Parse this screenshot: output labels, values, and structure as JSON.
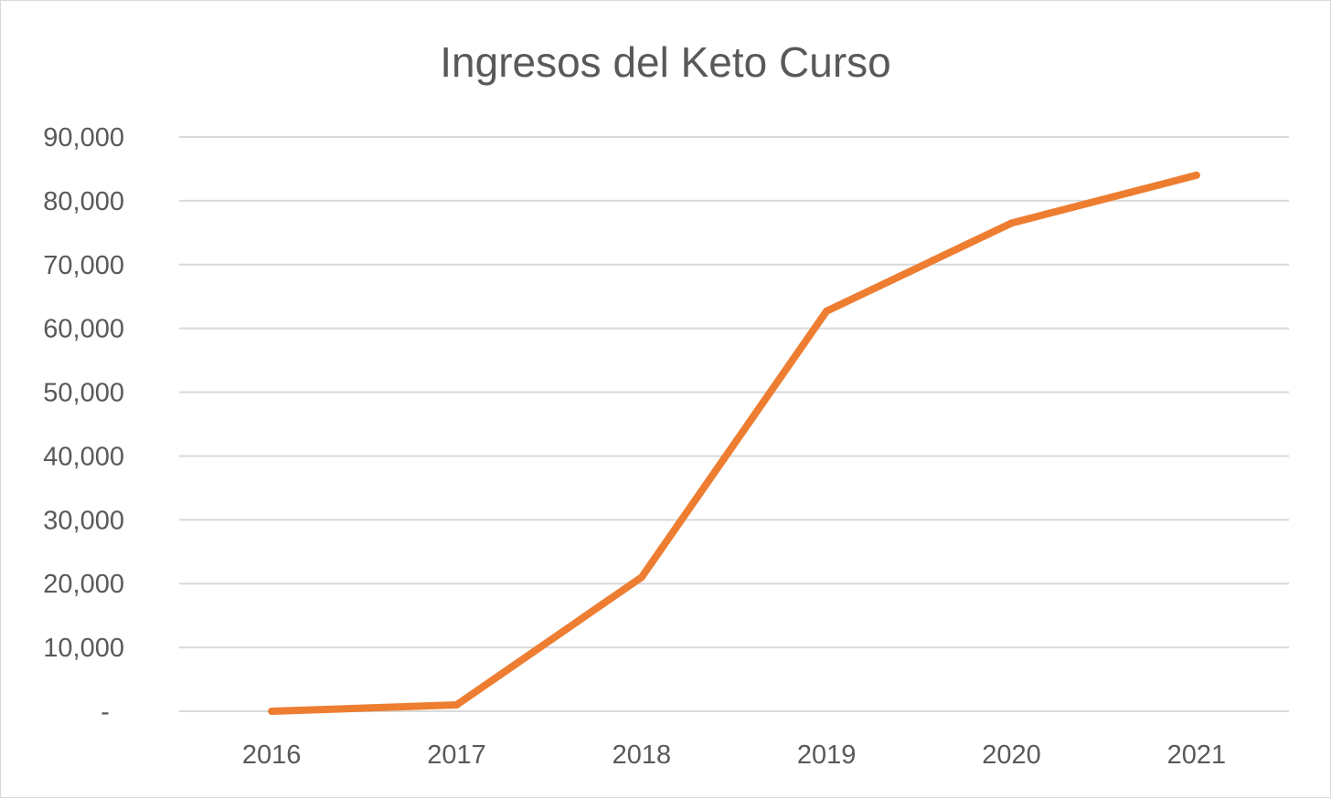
{
  "chart_data": {
    "type": "line",
    "title": "Ingresos del Keto Curso",
    "xlabel": "",
    "ylabel": "",
    "categories": [
      "2016",
      "2017",
      "2018",
      "2019",
      "2020",
      "2021"
    ],
    "series": [
      {
        "values": [
          0,
          1000,
          21000,
          62700,
          76500,
          84000
        ],
        "color": "#ed7d31"
      }
    ],
    "ylim": [
      0,
      90000
    ],
    "yticks": [
      0,
      10000,
      20000,
      30000,
      40000,
      50000,
      60000,
      70000,
      80000,
      90000
    ],
    "ytick_labels": [
      "-",
      "10,000",
      "20,000",
      "30,000",
      "40,000",
      "50,000",
      "60,000",
      "70,000",
      "80,000",
      "90,000"
    ],
    "grid": true,
    "legend": "none",
    "colors": {
      "line": "#ed7d31",
      "grid": "#d9d9d9",
      "text": "#595959"
    }
  }
}
